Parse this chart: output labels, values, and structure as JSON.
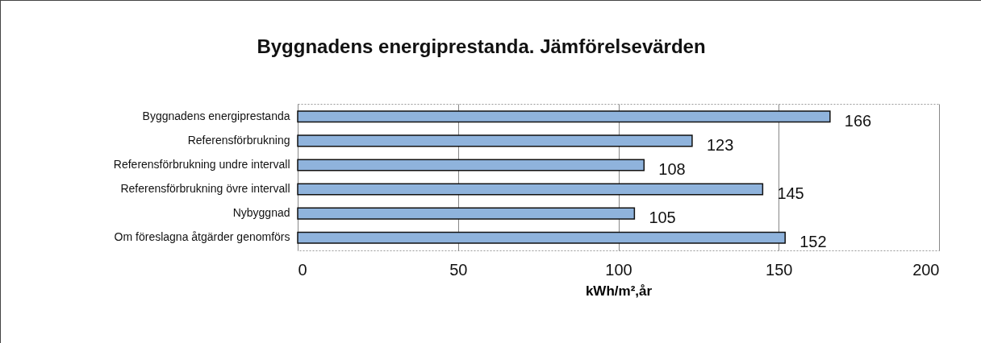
{
  "chart_data": {
    "type": "bar",
    "orientation": "horizontal",
    "title": "Byggnadens energiprestanda. Jämförelsevärden",
    "xlabel": "kWh/m²,år",
    "categories": [
      "Byggnadens energiprestanda",
      "Referensförbrukning",
      "Referensförbrukning undre intervall",
      "Referensförbrukning övre intervall",
      "Nybyggnad",
      "Om föreslagna åtgärder genomförs"
    ],
    "values": [
      166,
      123,
      108,
      145,
      105,
      152
    ],
    "color": "#8fb3dc",
    "xlim": [
      0,
      200
    ],
    "xticks": [
      0,
      50,
      100,
      150,
      200
    ],
    "grid": "x",
    "data_labels": true
  }
}
